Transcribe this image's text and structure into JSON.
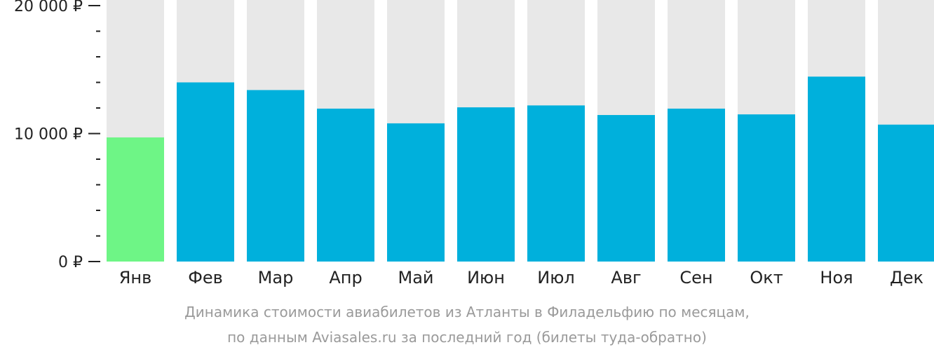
{
  "chart_data": {
    "type": "bar",
    "categories": [
      "Янв",
      "Фев",
      "Мар",
      "Апр",
      "Май",
      "Июн",
      "Июл",
      "Авг",
      "Сен",
      "Окт",
      "Ноя",
      "Дек"
    ],
    "values": [
      9700,
      14000,
      13400,
      11950,
      10800,
      12050,
      12200,
      11450,
      11950,
      11500,
      14450,
      10700
    ],
    "ylim": [
      0,
      20000
    ],
    "y_ticks": [
      {
        "value": 20000,
        "label": "20 000 ₽"
      },
      {
        "value": 10000,
        "label": "10 000 ₽"
      },
      {
        "value": 0,
        "label": "0 ₽"
      }
    ],
    "minor_tick_step": 2000,
    "highlight_index": 0,
    "colors": {
      "bar": "#00b0dc",
      "highlight": "#6ef586",
      "track": "#e8e8e8",
      "axis": "#222222"
    },
    "caption": [
      "Динамика стоимости авиабилетов из Атланты в Филадельфию по месяцам,",
      "по данным Aviasales.ru за последний год (билеты туда-обратно)"
    ]
  }
}
